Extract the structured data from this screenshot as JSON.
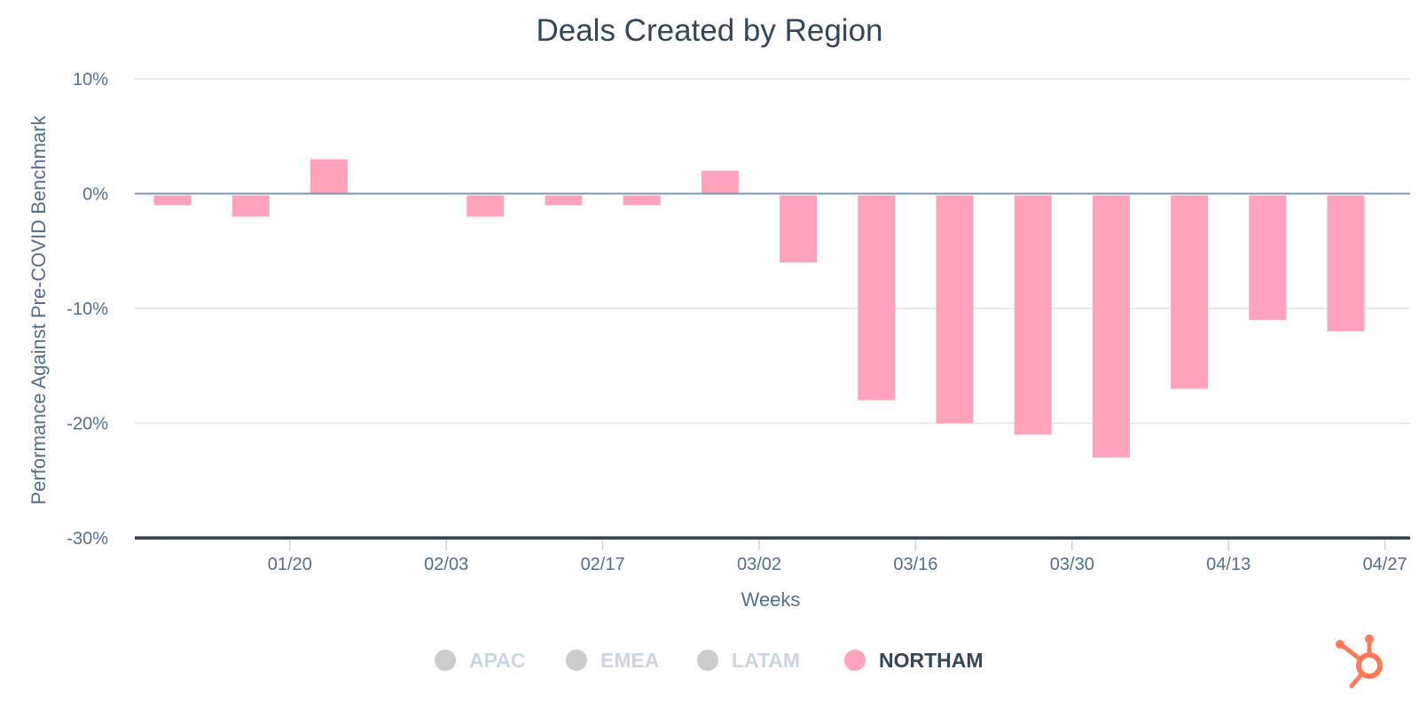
{
  "chart_data": {
    "type": "bar",
    "title": "Deals Created by Region",
    "xlabel": "Weeks",
    "ylabel": "Performance Against Pre-COVID Benchmark",
    "ylim": [
      -30,
      10
    ],
    "y_ticks": [
      "10%",
      "0%",
      "-10%",
      "-20%",
      "-30%"
    ],
    "y_tick_values": [
      10,
      0,
      -10,
      -20,
      -30
    ],
    "grid": true,
    "x_tick_labels": [
      "01/20",
      "02/03",
      "02/17",
      "03/02",
      "03/16",
      "03/30",
      "04/13",
      "04/27"
    ],
    "x_tick_slots": [
      1,
      3,
      5,
      7,
      9,
      11,
      13,
      15
    ],
    "series": [
      {
        "name": "NORTHAM",
        "color": "#ffa3bd",
        "values": [
          -1,
          -2,
          3,
          null,
          -2,
          -1,
          -1,
          2,
          -6,
          -18,
          -20,
          -21,
          -23,
          -17,
          -11,
          -12
        ]
      }
    ],
    "legend": {
      "placement": "bottom-center",
      "items": [
        {
          "label": "APAC",
          "color": "#cccccc",
          "active": false
        },
        {
          "label": "EMEA",
          "color": "#cccccc",
          "active": false
        },
        {
          "label": "LATAM",
          "color": "#cccccc",
          "active": false
        },
        {
          "label": "NORTHAM",
          "color": "#ffa3bd",
          "active": true
        }
      ]
    }
  },
  "colors": {
    "zero_line": "#7c98b6",
    "baseline": "#2d3e50",
    "grid": "#dfe3eb",
    "inactive_text": "#cbd6e2",
    "active_text": "#33475b",
    "logo": "#ff7a59"
  },
  "logo": {
    "icon": "hubspot-sprocket-icon"
  }
}
